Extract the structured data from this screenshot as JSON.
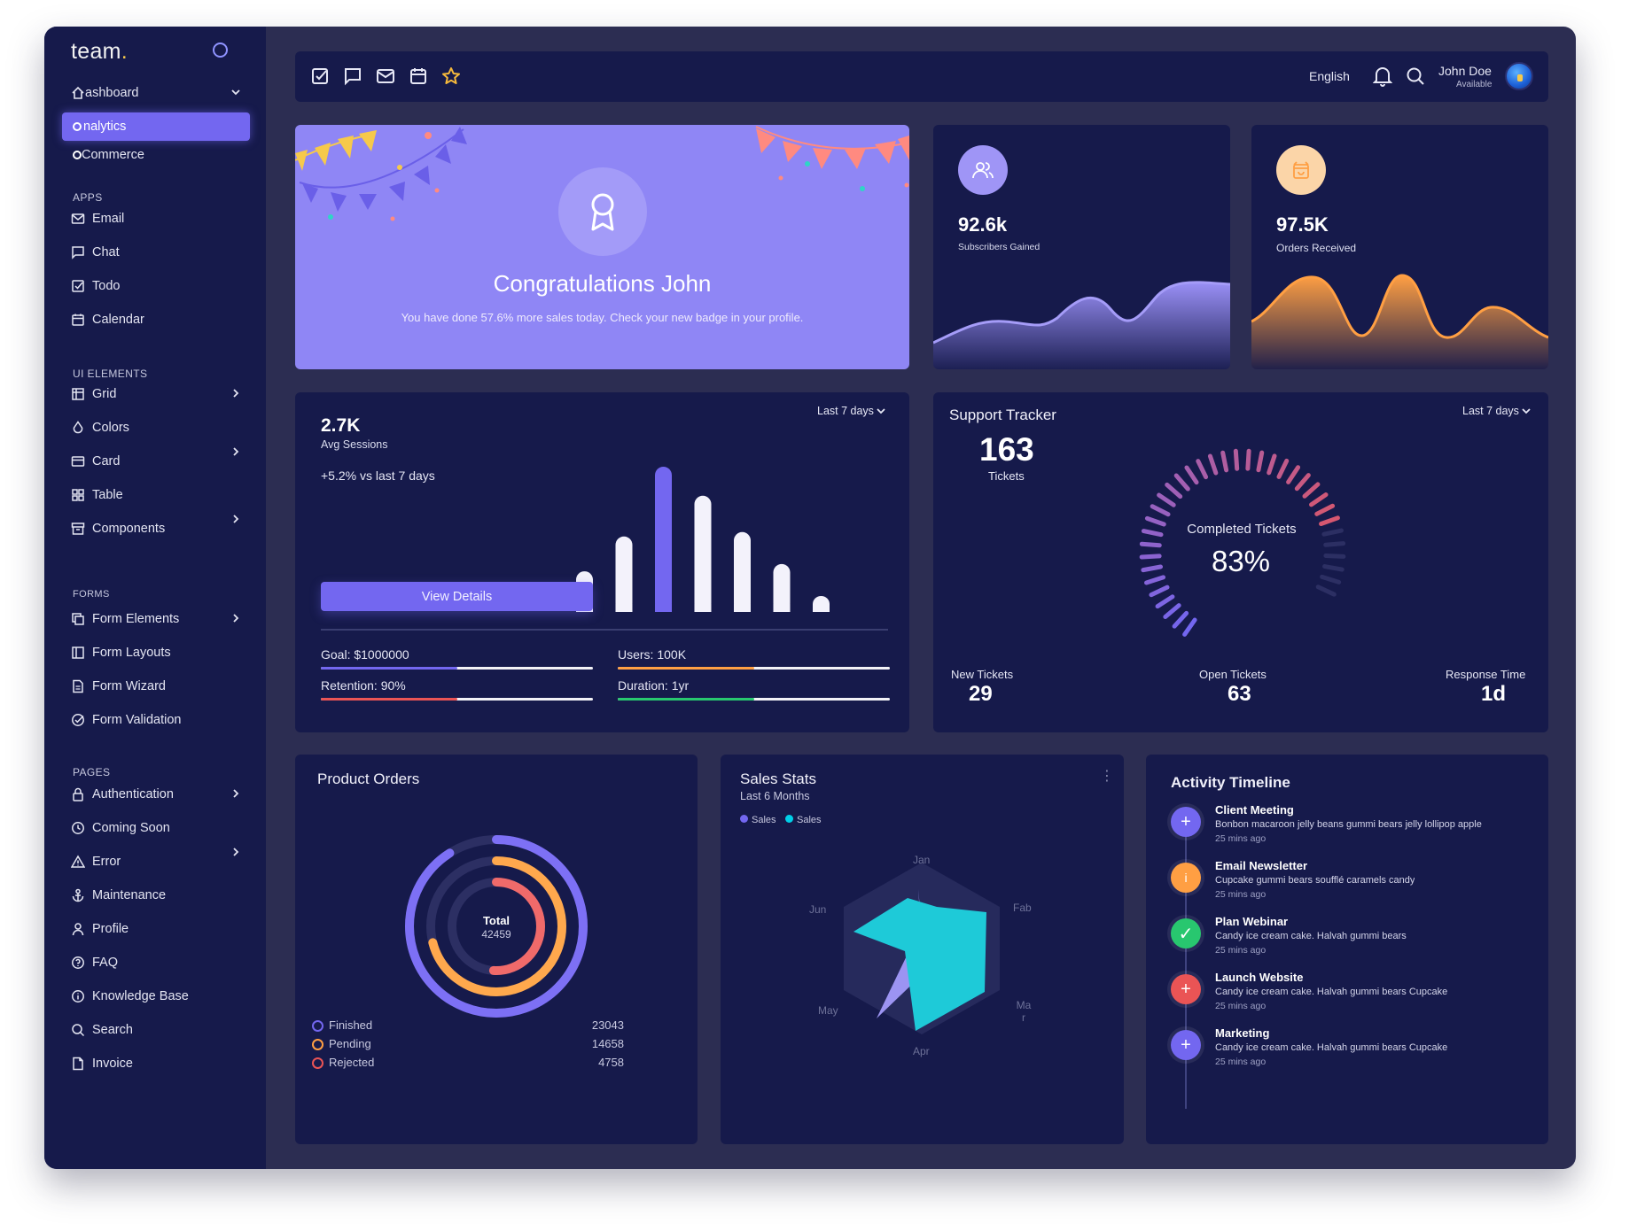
{
  "sidebar": {
    "logo": "team",
    "logo_dot": ".",
    "dashboard_label": "ashboard",
    "active_label": "nalytics",
    "ecommerce_label": "Commerce",
    "sections": {
      "apps": "APPS",
      "ui_elements": "UI ELEMENTS",
      "forms": "FORMS",
      "pages": "PAGES"
    },
    "items": {
      "email": "Email",
      "chat": "Chat",
      "todo": "Todo",
      "calendar": "Calendar",
      "grid": "Grid",
      "colors": "Colors",
      "card": "Card",
      "table": "Table",
      "components": "Components",
      "form_elements": "Form Elements",
      "form_layouts": "Form Layouts",
      "form_wizard": "Form Wizard",
      "form_validation": "Form Validation",
      "authentication": "Authentication",
      "coming_soon": "Coming Soon",
      "error": "Error",
      "maintenance": "Maintenance",
      "profile": "Profile",
      "faq": "FAQ",
      "knowledge_base": "Knowledge Base",
      "search": "Search",
      "invoice": "Invoice"
    }
  },
  "topbar": {
    "language": "English",
    "user_name": "John Doe",
    "user_status": "Available"
  },
  "congrats": {
    "title": "Congratulations John",
    "text": "You have done 57.6% more sales today. Check your new badge in your profile."
  },
  "subscribers": {
    "value": "92.6k",
    "label": "Subscribers Gained"
  },
  "orders_received": {
    "value": "97.5K",
    "label": "Orders Received"
  },
  "sessions": {
    "value": "2.7K",
    "label": "Avg Sessions",
    "change": "+5.2% vs last 7 days",
    "period": "Last 7 days",
    "button": "View Details",
    "bars": [
      0.28,
      0.52,
      1.0,
      0.8,
      0.55,
      0.33,
      0.1
    ],
    "goal": "Goal: $1000000",
    "users": "Users: 100K",
    "retention": "Retention: 90%",
    "duration": "Duration: 1yr",
    "goal_fill": 0.5,
    "users_fill": 0.5,
    "retention_fill": 0.5,
    "duration_fill": 0.5
  },
  "support": {
    "title": "Support Tracker",
    "period": "Last 7 days",
    "tickets_value": "163",
    "tickets_label": "Tickets",
    "completed_label": "Completed Tickets",
    "completed_value": "83%",
    "new_label": "New Tickets",
    "new_value": "29",
    "open_label": "Open Tickets",
    "open_value": "63",
    "response_label": "Response Time",
    "response_value": "1d"
  },
  "product_orders": {
    "title": "Product Orders",
    "total_label": "Total",
    "total_value": "42459",
    "legend": [
      {
        "label": "Finished",
        "value": "23043",
        "color": "#7367f0"
      },
      {
        "label": "Pending",
        "value": "14658",
        "color": "#ff9f43"
      },
      {
        "label": "Rejected",
        "value": "4758",
        "color": "#ea5455"
      }
    ]
  },
  "sales_stats": {
    "title": "Sales Stats",
    "subtitle": "Last 6 Months",
    "legend_1": "Sales",
    "legend_2": "Sales",
    "axes": [
      "Jan",
      "Fab",
      "Ma r",
      "Apr",
      "May",
      "Jun"
    ]
  },
  "timeline": {
    "title": "Activity Timeline",
    "items": [
      {
        "title": "Client Meeting",
        "text": "Bonbon macaroon jelly beans gummi bears jelly lollipop apple",
        "time": "25 mins ago",
        "color": "#7367f0"
      },
      {
        "title": "Email Newsletter",
        "text": "Cupcake gummi bears soufflé caramels candy",
        "time": "25 mins ago",
        "color": "#ff9f43"
      },
      {
        "title": "Plan Webinar",
        "text": "Candy ice cream cake. Halvah gummi bears",
        "time": "25 mins ago",
        "color": "#28c76f"
      },
      {
        "title": "Launch Website",
        "text": "Candy ice cream cake. Halvah gummi bears Cupcake",
        "time": "25 mins ago",
        "color": "#ea5455"
      },
      {
        "title": "Marketing",
        "text": "Candy ice cream cake. Halvah gummi bears Cupcake",
        "time": "25 mins ago",
        "color": "#7367f0"
      }
    ]
  }
}
